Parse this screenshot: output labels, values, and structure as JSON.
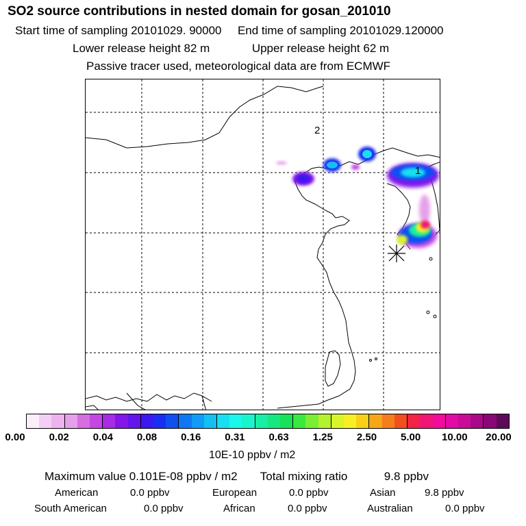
{
  "header": {
    "title": "SO2 source contributions in nested domain for gosan_201010",
    "start_label": "Start time of sampling 20101029. 90000",
    "end_label": "End time of sampling 20101029.120000",
    "lower_label": "Lower release height   82 m",
    "upper_label": "Upper release height   62 m",
    "tracer_note": "Passive tracer used, meteorological data are from ECMWF"
  },
  "map": {
    "markers": [
      {
        "label": "2"
      },
      {
        "label": "1"
      }
    ],
    "receptor_symbol": "asterisk"
  },
  "colorbar": {
    "colors": [
      "#fbeefb",
      "#f5cef5",
      "#eeb2ee",
      "#e6a0ea",
      "#d56edf",
      "#c447e4",
      "#a82be6",
      "#8217e8",
      "#6414ec",
      "#3b19f0",
      "#1a2ff2",
      "#1050f2",
      "#0e78f4",
      "#119bf6",
      "#14bff3",
      "#17dff0",
      "#1af7ec",
      "#18f5cd",
      "#18eea4",
      "#16e880",
      "#18e25a",
      "#3ae83e",
      "#7aee32",
      "#b2f22e",
      "#daf42a",
      "#f7ef23",
      "#f7d017",
      "#f6a619",
      "#f47e1b",
      "#f24f1e",
      "#f32346",
      "#f21476",
      "#f00c9c",
      "#e20ba6",
      "#c80c98",
      "#a80a8a",
      "#880878",
      "#5e0a5a"
    ],
    "tick_labels": [
      "0.00",
      "0.02",
      "0.04",
      "0.08",
      "0.16",
      "0.31",
      "0.63",
      "1.25",
      "2.50",
      "5.00",
      "10.00",
      "20.00"
    ],
    "units": "10E-10 ppbv / m2"
  },
  "summary": {
    "max_label": "Maximum value  0.101E-08 ppbv / m2",
    "total_label": "Total mixing ratio",
    "total_value": "9.8 ppbv",
    "regions": [
      {
        "name": "American",
        "value": "0.0 ppbv"
      },
      {
        "name": "European",
        "value": "0.0 ppbv"
      },
      {
        "name": "Asian",
        "value": "9.8 ppbv"
      },
      {
        "name": "South American",
        "value": "0.0 ppbv"
      },
      {
        "name": "African",
        "value": "0.0 ppbv"
      },
      {
        "name": "Australian",
        "value": "0.0 ppbv"
      }
    ]
  }
}
